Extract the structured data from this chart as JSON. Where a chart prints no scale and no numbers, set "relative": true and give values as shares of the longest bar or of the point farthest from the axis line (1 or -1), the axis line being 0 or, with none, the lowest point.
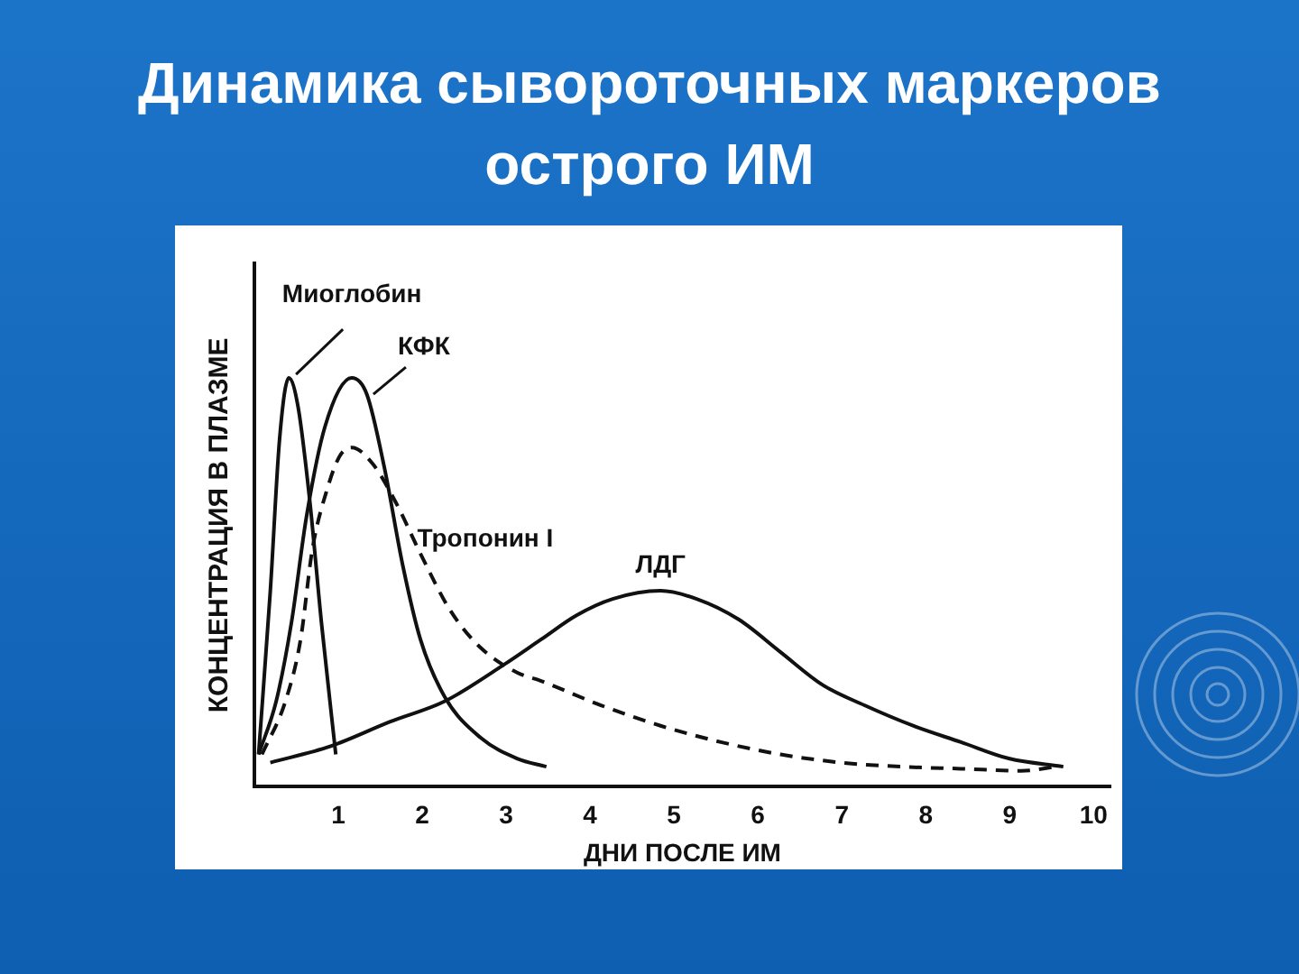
{
  "chart_data": {
    "type": "line",
    "title": "Динамика сывороточных маркеров острого ИМ",
    "xlabel": "ДНИ ПОСЛЕ ИМ",
    "ylabel": "КОНЦЕНТРАЦИЯ В ПЛАЗМЕ",
    "relative": true,
    "xlim": [
      0,
      10.2
    ],
    "xticks": [
      1,
      2,
      3,
      4,
      5,
      6,
      7,
      8,
      9,
      10
    ],
    "tick_labels": "x",
    "grid": false,
    "legend": false,
    "marker": "none",
    "line_style": "solid",
    "series": [
      {
        "name": "Миоглобин",
        "color": "#111111",
        "x": [
          0.05,
          0.19,
          0.3,
          0.41,
          0.52,
          0.66,
          0.8,
          0.97
        ],
        "values": [
          0.08,
          0.48,
          0.85,
          1.0,
          0.93,
          0.7,
          0.4,
          0.08
        ]
      },
      {
        "name": "КФК",
        "color": "#111111",
        "x": [
          0.05,
          0.26,
          0.44,
          0.62,
          0.84,
          1.16,
          1.34,
          1.55,
          1.77,
          1.98,
          2.27,
          2.7,
          3.13,
          3.48
        ],
        "values": [
          0.08,
          0.21,
          0.4,
          0.66,
          0.88,
          1.0,
          0.96,
          0.78,
          0.54,
          0.36,
          0.22,
          0.12,
          0.07,
          0.05
        ]
      },
      {
        "name": "Тропонин I",
        "color": "#111111",
        "line_style": "dashed",
        "x": [
          0.09,
          0.37,
          0.55,
          0.69,
          0.87,
          1.02,
          1.16,
          1.41,
          1.7,
          1.98,
          2.34,
          2.7,
          3.13,
          3.41,
          4.13,
          4.84,
          5.56,
          6.27,
          6.99,
          7.7,
          8.42,
          9.14,
          9.56
        ],
        "values": [
          0.08,
          0.21,
          0.36,
          0.58,
          0.73,
          0.81,
          0.83,
          0.79,
          0.69,
          0.57,
          0.43,
          0.34,
          0.28,
          0.26,
          0.2,
          0.15,
          0.11,
          0.08,
          0.06,
          0.05,
          0.045,
          0.04,
          0.05
        ]
      },
      {
        "name": "ЛДГ",
        "color": "#111111",
        "x": [
          0.19,
          0.91,
          1.62,
          2.27,
          2.98,
          3.41,
          3.84,
          4.27,
          4.84,
          5.27,
          5.77,
          6.27,
          6.77,
          7.27,
          7.85,
          8.42,
          8.99,
          9.64
        ],
        "values": [
          0.06,
          0.1,
          0.16,
          0.21,
          0.3,
          0.36,
          0.42,
          0.46,
          0.48,
          0.46,
          0.41,
          0.33,
          0.25,
          0.2,
          0.15,
          0.11,
          0.07,
          0.05
        ]
      }
    ]
  }
}
